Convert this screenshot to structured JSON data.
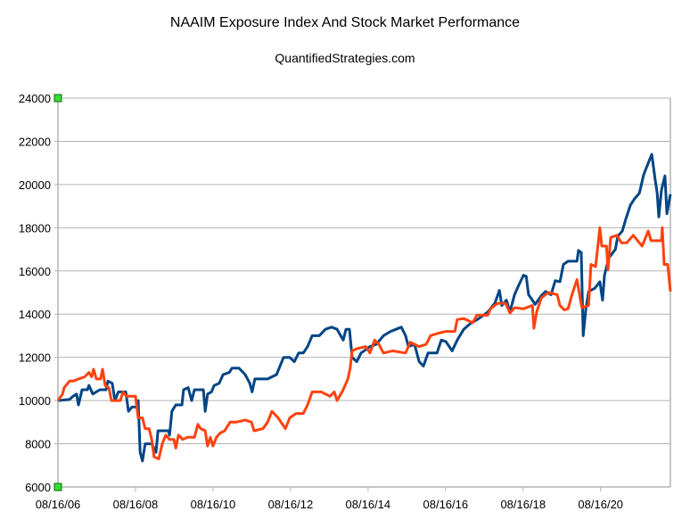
{
  "chart_data": {
    "type": "line",
    "title": "NAAIM Exposure Index And Stock Market Performance",
    "subtitle": "QuantifiedStrategies.com",
    "xlabel": "",
    "ylabel": "",
    "xlim": [
      2006.62,
      2022.42
    ],
    "ylim": [
      6000,
      24000
    ],
    "grid": true,
    "legend": "none",
    "x_ticks": [
      {
        "value": 2006.62,
        "label": "08/16/06"
      },
      {
        "value": 2008.62,
        "label": "08/16/08"
      },
      {
        "value": 2010.62,
        "label": "08/16/10"
      },
      {
        "value": 2012.62,
        "label": "08/16/12"
      },
      {
        "value": 2014.62,
        "label": "08/16/14"
      },
      {
        "value": 2016.62,
        "label": "08/16/16"
      },
      {
        "value": 2018.62,
        "label": "08/16/18"
      },
      {
        "value": 2020.62,
        "label": "08/16/20"
      }
    ],
    "y_ticks": [
      6000,
      8000,
      10000,
      12000,
      14000,
      16000,
      18000,
      20000,
      22000,
      24000
    ],
    "series": [
      {
        "name": "blue",
        "color": "#004586",
        "points": [
          [
            2006.62,
            10000
          ],
          [
            2006.92,
            10050
          ],
          [
            2007.01,
            10200
          ],
          [
            2007.1,
            10300
          ],
          [
            2007.15,
            9800
          ],
          [
            2007.24,
            10500
          ],
          [
            2007.38,
            10500
          ],
          [
            2007.42,
            10700
          ],
          [
            2007.52,
            10300
          ],
          [
            2007.61,
            10400
          ],
          [
            2007.7,
            10500
          ],
          [
            2007.86,
            10500
          ],
          [
            2007.91,
            10900
          ],
          [
            2008.02,
            10800
          ],
          [
            2008.09,
            10000
          ],
          [
            2008.18,
            10400
          ],
          [
            2008.37,
            10400
          ],
          [
            2008.44,
            9500
          ],
          [
            2008.53,
            9700
          ],
          [
            2008.64,
            9700
          ],
          [
            2008.69,
            10000
          ],
          [
            2008.74,
            7600
          ],
          [
            2008.8,
            7200
          ],
          [
            2008.87,
            8000
          ],
          [
            2009.04,
            8000
          ],
          [
            2009.15,
            7600
          ],
          [
            2009.2,
            8600
          ],
          [
            2009.47,
            8600
          ],
          [
            2009.5,
            8400
          ],
          [
            2009.56,
            9500
          ],
          [
            2009.66,
            9800
          ],
          [
            2009.82,
            9800
          ],
          [
            2009.86,
            10500
          ],
          [
            2009.98,
            10600
          ],
          [
            2010.07,
            10000
          ],
          [
            2010.14,
            10500
          ],
          [
            2010.37,
            10500
          ],
          [
            2010.42,
            9500
          ],
          [
            2010.48,
            10300
          ],
          [
            2010.58,
            10400
          ],
          [
            2010.65,
            10700
          ],
          [
            2010.78,
            10800
          ],
          [
            2010.88,
            11200
          ],
          [
            2011.04,
            11300
          ],
          [
            2011.11,
            11500
          ],
          [
            2011.29,
            11500
          ],
          [
            2011.45,
            11200
          ],
          [
            2011.57,
            10800
          ],
          [
            2011.63,
            10400
          ],
          [
            2011.7,
            11000
          ],
          [
            2012.03,
            11000
          ],
          [
            2012.26,
            11200
          ],
          [
            2012.44,
            12000
          ],
          [
            2012.6,
            12000
          ],
          [
            2012.72,
            11800
          ],
          [
            2012.83,
            12200
          ],
          [
            2012.95,
            12200
          ],
          [
            2013.06,
            12500
          ],
          [
            2013.18,
            13000
          ],
          [
            2013.36,
            13000
          ],
          [
            2013.52,
            13300
          ],
          [
            2013.68,
            13400
          ],
          [
            2013.82,
            13300
          ],
          [
            2013.98,
            12800
          ],
          [
            2014.05,
            13300
          ],
          [
            2014.14,
            13300
          ],
          [
            2014.21,
            12000
          ],
          [
            2014.33,
            11800
          ],
          [
            2014.44,
            12200
          ],
          [
            2014.67,
            12500
          ],
          [
            2014.83,
            12600
          ],
          [
            2015.02,
            13000
          ],
          [
            2015.2,
            13200
          ],
          [
            2015.34,
            13300
          ],
          [
            2015.48,
            13400
          ],
          [
            2015.59,
            13000
          ],
          [
            2015.66,
            12500
          ],
          [
            2015.82,
            12600
          ],
          [
            2015.94,
            11800
          ],
          [
            2016.05,
            11600
          ],
          [
            2016.17,
            12200
          ],
          [
            2016.4,
            12200
          ],
          [
            2016.51,
            12800
          ],
          [
            2016.63,
            12730
          ],
          [
            2016.79,
            12300
          ],
          [
            2016.92,
            12800
          ],
          [
            2017.09,
            13300
          ],
          [
            2017.25,
            13550
          ],
          [
            2017.48,
            13800
          ],
          [
            2017.71,
            14100
          ],
          [
            2017.89,
            14500
          ],
          [
            2018.01,
            15100
          ],
          [
            2018.07,
            14400
          ],
          [
            2018.19,
            14650
          ],
          [
            2018.28,
            14100
          ],
          [
            2018.4,
            14900
          ],
          [
            2018.51,
            15350
          ],
          [
            2018.63,
            15800
          ],
          [
            2018.7,
            15750
          ],
          [
            2018.76,
            14900
          ],
          [
            2018.86,
            14650
          ],
          [
            2018.93,
            14450
          ],
          [
            2019.09,
            14850
          ],
          [
            2019.2,
            15050
          ],
          [
            2019.34,
            14900
          ],
          [
            2019.45,
            15550
          ],
          [
            2019.57,
            15500
          ],
          [
            2019.66,
            16300
          ],
          [
            2019.78,
            16450
          ],
          [
            2020.01,
            16450
          ],
          [
            2020.05,
            16950
          ],
          [
            2020.12,
            16850
          ],
          [
            2020.17,
            13000
          ],
          [
            2020.24,
            14250
          ],
          [
            2020.31,
            15050
          ],
          [
            2020.47,
            15200
          ],
          [
            2020.6,
            15500
          ],
          [
            2020.67,
            14650
          ],
          [
            2020.72,
            15800
          ],
          [
            2020.83,
            16600
          ],
          [
            2021.0,
            17000
          ],
          [
            2021.06,
            17600
          ],
          [
            2021.18,
            17850
          ],
          [
            2021.27,
            18400
          ],
          [
            2021.39,
            19050
          ],
          [
            2021.5,
            19350
          ],
          [
            2021.62,
            19600
          ],
          [
            2021.73,
            20450
          ],
          [
            2021.85,
            21000
          ],
          [
            2021.94,
            21400
          ],
          [
            2022.03,
            20200
          ],
          [
            2022.08,
            19600
          ],
          [
            2022.12,
            18500
          ],
          [
            2022.19,
            19750
          ],
          [
            2022.28,
            20400
          ],
          [
            2022.33,
            18650
          ],
          [
            2022.42,
            19550
          ]
        ]
      },
      {
        "name": "orange",
        "color": "#ff420e",
        "points": [
          [
            2006.62,
            10000
          ],
          [
            2006.74,
            10300
          ],
          [
            2006.78,
            10600
          ],
          [
            2006.92,
            10900
          ],
          [
            2007.01,
            10900
          ],
          [
            2007.15,
            11000
          ],
          [
            2007.31,
            11100
          ],
          [
            2007.42,
            11300
          ],
          [
            2007.49,
            11100
          ],
          [
            2007.54,
            11450
          ],
          [
            2007.61,
            11000
          ],
          [
            2007.72,
            11000
          ],
          [
            2007.77,
            11450
          ],
          [
            2007.84,
            10700
          ],
          [
            2007.93,
            10600
          ],
          [
            2008.0,
            10000
          ],
          [
            2008.12,
            10000
          ],
          [
            2008.23,
            10000
          ],
          [
            2008.3,
            10400
          ],
          [
            2008.39,
            10200
          ],
          [
            2008.53,
            10200
          ],
          [
            2008.62,
            10200
          ],
          [
            2008.69,
            9200
          ],
          [
            2008.8,
            9200
          ],
          [
            2008.87,
            8700
          ],
          [
            2008.97,
            8700
          ],
          [
            2009.04,
            8200
          ],
          [
            2009.1,
            7400
          ],
          [
            2009.22,
            7300
          ],
          [
            2009.31,
            8000
          ],
          [
            2009.4,
            8400
          ],
          [
            2009.5,
            8200
          ],
          [
            2009.61,
            8200
          ],
          [
            2009.66,
            7800
          ],
          [
            2009.73,
            8400
          ],
          [
            2009.84,
            8200
          ],
          [
            2009.96,
            8300
          ],
          [
            2010.14,
            8300
          ],
          [
            2010.23,
            8900
          ],
          [
            2010.3,
            8700
          ],
          [
            2010.42,
            8600
          ],
          [
            2010.48,
            7900
          ],
          [
            2010.55,
            8300
          ],
          [
            2010.62,
            7900
          ],
          [
            2010.71,
            8300
          ],
          [
            2010.81,
            8500
          ],
          [
            2010.92,
            8600
          ],
          [
            2011.06,
            9000
          ],
          [
            2011.22,
            9000
          ],
          [
            2011.45,
            9100
          ],
          [
            2011.61,
            9000
          ],
          [
            2011.68,
            8600
          ],
          [
            2011.91,
            8700
          ],
          [
            2012.03,
            9000
          ],
          [
            2012.14,
            9500
          ],
          [
            2012.3,
            9200
          ],
          [
            2012.49,
            8700
          ],
          [
            2012.6,
            9200
          ],
          [
            2012.76,
            9400
          ],
          [
            2012.95,
            9400
          ],
          [
            2013.06,
            9800
          ],
          [
            2013.18,
            10400
          ],
          [
            2013.41,
            10400
          ],
          [
            2013.64,
            10200
          ],
          [
            2013.75,
            10400
          ],
          [
            2013.82,
            10000
          ],
          [
            2013.98,
            10500
          ],
          [
            2014.1,
            11000
          ],
          [
            2014.16,
            11500
          ],
          [
            2014.21,
            12300
          ],
          [
            2014.33,
            12400
          ],
          [
            2014.56,
            12500
          ],
          [
            2014.67,
            12200
          ],
          [
            2014.79,
            12800
          ],
          [
            2014.9,
            12600
          ],
          [
            2015.02,
            12200
          ],
          [
            2015.25,
            12300
          ],
          [
            2015.59,
            12200
          ],
          [
            2015.71,
            12700
          ],
          [
            2015.94,
            12500
          ],
          [
            2016.12,
            12600
          ],
          [
            2016.23,
            13000
          ],
          [
            2016.4,
            13100
          ],
          [
            2016.63,
            13200
          ],
          [
            2016.86,
            13200
          ],
          [
            2016.92,
            13750
          ],
          [
            2017.09,
            13800
          ],
          [
            2017.32,
            13600
          ],
          [
            2017.43,
            13950
          ],
          [
            2017.71,
            13950
          ],
          [
            2017.78,
            14250
          ],
          [
            2017.96,
            14500
          ],
          [
            2018.17,
            14500
          ],
          [
            2018.28,
            14050
          ],
          [
            2018.4,
            14300
          ],
          [
            2018.63,
            14250
          ],
          [
            2018.86,
            14400
          ],
          [
            2018.9,
            13350
          ],
          [
            2018.97,
            14100
          ],
          [
            2019.09,
            14750
          ],
          [
            2019.27,
            15000
          ],
          [
            2019.5,
            14900
          ],
          [
            2019.57,
            14400
          ],
          [
            2019.68,
            14200
          ],
          [
            2019.78,
            14250
          ],
          [
            2019.89,
            14950
          ],
          [
            2020.01,
            15600
          ],
          [
            2020.12,
            14450
          ],
          [
            2020.14,
            14300
          ],
          [
            2020.31,
            14400
          ],
          [
            2020.37,
            16300
          ],
          [
            2020.49,
            16200
          ],
          [
            2020.6,
            18000
          ],
          [
            2020.65,
            17150
          ],
          [
            2020.77,
            17150
          ],
          [
            2020.81,
            16050
          ],
          [
            2020.88,
            17550
          ],
          [
            2021.04,
            17650
          ],
          [
            2021.16,
            17300
          ],
          [
            2021.29,
            17300
          ],
          [
            2021.46,
            17650
          ],
          [
            2021.69,
            17150
          ],
          [
            2021.85,
            17850
          ],
          [
            2021.92,
            17400
          ],
          [
            2022.19,
            17400
          ],
          [
            2022.21,
            18000
          ],
          [
            2022.26,
            16300
          ],
          [
            2022.35,
            16300
          ],
          [
            2022.42,
            15050
          ]
        ]
      }
    ]
  }
}
